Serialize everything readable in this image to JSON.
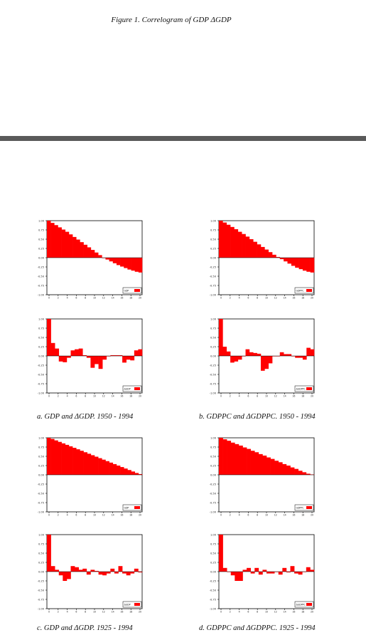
{
  "figure_title": "Figure 1. Correlogram of GDP ΔGDP",
  "captions": [
    "a.  GDP and ΔGDP. 1950 - 1994",
    "b.  GDPPC and ΔGDPPC. 1950 - 1994",
    "c.  GDP and ΔGDP. 1925 - 1994",
    "d.  GDPPC and ΔGDPPC. 1925 - 1994"
  ],
  "colors": {
    "bar": "#ff0000",
    "axis": "#000000",
    "divider": "#5a5a5a"
  },
  "chart_data": [
    {
      "type": "bar",
      "panel": "a",
      "legend": "GDP",
      "ylim": [
        -1,
        1
      ],
      "yticks": [
        "1.00",
        "0.75",
        "0.50",
        "0.25",
        "0.00",
        "-0.25",
        "-0.50",
        "-0.75",
        "-1.00"
      ],
      "xticks": [
        "0",
        "2",
        "4",
        "6",
        "8",
        "10",
        "12",
        "14",
        "16",
        "18",
        "20"
      ],
      "values": [
        1.0,
        0.94,
        0.88,
        0.82,
        0.76,
        0.7,
        0.63,
        0.56,
        0.49,
        0.42,
        0.35,
        0.28,
        0.21,
        0.14,
        0.07,
        0.0,
        -0.05,
        -0.1,
        -0.15,
        -0.2,
        -0.24,
        -0.28,
        -0.32,
        -0.35,
        -0.38,
        -0.4
      ]
    },
    {
      "type": "bar",
      "panel": "a",
      "legend": "ΔGDP",
      "ylim": [
        -1,
        1
      ],
      "yticks": [
        "1.00",
        "0.75",
        "0.50",
        "0.25",
        "0.00",
        "-0.25",
        "-0.50",
        "-0.75",
        "-1.00"
      ],
      "xticks": [
        "0",
        "2",
        "4",
        "6",
        "8",
        "10",
        "12",
        "14",
        "16",
        "18",
        "20"
      ],
      "values": [
        1.0,
        0.35,
        0.2,
        -0.15,
        -0.17,
        -0.05,
        0.15,
        0.18,
        0.2,
        0.02,
        -0.05,
        -0.32,
        -0.22,
        -0.35,
        -0.1,
        0.0,
        0.02,
        0.02,
        0.02,
        -0.18,
        -0.1,
        -0.12,
        0.15,
        0.18
      ]
    },
    {
      "type": "bar",
      "panel": "b",
      "legend": "GDPPC",
      "ylim": [
        -1,
        1
      ],
      "yticks": [
        "1.00",
        "0.75",
        "0.50",
        "0.25",
        "0.00",
        "-0.25",
        "-0.50",
        "-0.75",
        "-1.00"
      ],
      "xticks": [
        "0",
        "2",
        "4",
        "6",
        "8",
        "10",
        "12",
        "14",
        "16",
        "18",
        "20"
      ],
      "values": [
        1.0,
        0.95,
        0.89,
        0.83,
        0.77,
        0.7,
        0.64,
        0.57,
        0.5,
        0.43,
        0.36,
        0.29,
        0.22,
        0.15,
        0.08,
        0.02,
        -0.04,
        -0.1,
        -0.16,
        -0.22,
        -0.27,
        -0.31,
        -0.35,
        -0.38,
        -0.4
      ]
    },
    {
      "type": "bar",
      "panel": "b",
      "legend": "ΔGDPPC",
      "ylim": [
        -1,
        1
      ],
      "yticks": [
        "1.00",
        "0.75",
        "0.50",
        "0.25",
        "0.00",
        "-0.25",
        "-0.50",
        "-0.75",
        "-1.00"
      ],
      "xticks": [
        "0",
        "2",
        "4",
        "6",
        "8",
        "10",
        "12",
        "14",
        "16",
        "18",
        "20"
      ],
      "values": [
        1.0,
        0.25,
        0.12,
        -0.18,
        -0.15,
        -0.1,
        0.0,
        0.18,
        0.1,
        0.08,
        0.06,
        -0.4,
        -0.35,
        -0.2,
        0.0,
        0.0,
        0.1,
        0.05,
        0.05,
        0.0,
        -0.05,
        -0.05,
        -0.1,
        0.22,
        0.18
      ]
    },
    {
      "type": "bar",
      "panel": "c",
      "legend": "GDP",
      "ylim": [
        -1,
        1
      ],
      "yticks": [
        "1.00",
        "0.75",
        "0.50",
        "0.25",
        "0.00",
        "-0.25",
        "-0.50",
        "-0.75",
        "-1.00"
      ],
      "xticks": [
        "0",
        "2",
        "4",
        "6",
        "8",
        "10",
        "12",
        "14",
        "16",
        "18",
        "20"
      ],
      "values": [
        1.0,
        0.97,
        0.93,
        0.89,
        0.85,
        0.81,
        0.77,
        0.73,
        0.69,
        0.65,
        0.61,
        0.57,
        0.53,
        0.49,
        0.45,
        0.41,
        0.37,
        0.33,
        0.29,
        0.25,
        0.21,
        0.17,
        0.13,
        0.09,
        0.05,
        0.02
      ]
    },
    {
      "type": "bar",
      "panel": "c",
      "legend": "ΔGDP",
      "ylim": [
        -1,
        1
      ],
      "yticks": [
        "1.00",
        "0.75",
        "0.50",
        "0.25",
        "0.00",
        "-0.25",
        "-0.50",
        "-0.75",
        "-1.00"
      ],
      "xticks": [
        "0",
        "2",
        "4",
        "6",
        "8",
        "10",
        "12",
        "14",
        "16",
        "18",
        "20"
      ],
      "values": [
        1.0,
        0.15,
        0.05,
        -0.1,
        -0.25,
        -0.2,
        0.15,
        0.12,
        0.05,
        0.08,
        -0.08,
        0.05,
        0.02,
        -0.08,
        -0.1,
        -0.05,
        0.08,
        -0.05,
        0.15,
        -0.05,
        -0.1,
        -0.05,
        0.08,
        -0.02
      ]
    },
    {
      "type": "bar",
      "panel": "d",
      "legend": "GDPPC",
      "ylim": [
        -1,
        1
      ],
      "yticks": [
        "1.00",
        "0.75",
        "0.50",
        "0.25",
        "0.00",
        "-0.25",
        "-0.50",
        "-0.75",
        "-1.00"
      ],
      "xticks": [
        "0",
        "2",
        "4",
        "6",
        "8",
        "10",
        "12",
        "14",
        "16",
        "18",
        "20"
      ],
      "values": [
        1.0,
        0.96,
        0.92,
        0.87,
        0.83,
        0.79,
        0.74,
        0.7,
        0.65,
        0.61,
        0.56,
        0.52,
        0.47,
        0.43,
        0.38,
        0.34,
        0.29,
        0.25,
        0.2,
        0.16,
        0.11,
        0.07,
        0.03,
        0.01
      ]
    },
    {
      "type": "bar",
      "panel": "d",
      "legend": "ΔGDPPC",
      "ylim": [
        -1,
        1
      ],
      "yticks": [
        "1.00",
        "0.75",
        "0.50",
        "0.25",
        "0.00",
        "-0.25",
        "-0.50",
        "-0.75",
        "-1.00"
      ],
      "xticks": [
        "0",
        "2",
        "4",
        "6",
        "8",
        "10",
        "12",
        "14",
        "16",
        "18",
        "20"
      ],
      "values": [
        1.0,
        0.1,
        0.0,
        -0.1,
        -0.25,
        -0.25,
        0.05,
        0.1,
        -0.05,
        0.1,
        -0.08,
        0.05,
        -0.05,
        -0.05,
        0.0,
        -0.08,
        0.1,
        -0.02,
        0.15,
        -0.05,
        -0.08,
        0.0,
        0.12,
        0.05
      ]
    }
  ]
}
